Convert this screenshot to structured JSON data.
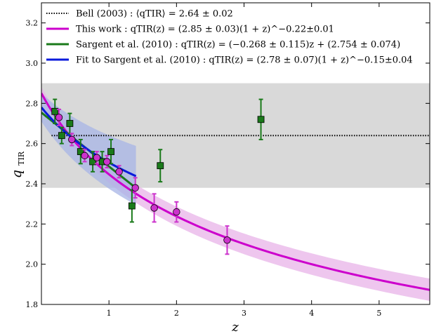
{
  "chart_data": {
    "type": "scatter",
    "title": "",
    "xlabel": "z",
    "ylabel": "q",
    "ylabel_sub": "TIR",
    "xlim": [
      0.0,
      5.75
    ],
    "ylim": [
      1.8,
      3.3
    ],
    "x_ticks": [
      1,
      2,
      3,
      4,
      5
    ],
    "x_tick_labels": [
      "1",
      "2",
      "3",
      "4",
      "5"
    ],
    "y_ticks": [
      1.8,
      2.0,
      2.2,
      2.4,
      2.6,
      2.8,
      3.0,
      3.2
    ],
    "y_tick_labels": [
      "1.8",
      "2.0",
      "2.2",
      "2.4",
      "2.6",
      "2.8",
      "3.0",
      "3.2"
    ],
    "grid": false,
    "legend_position": "top-left",
    "shaded_band": {
      "y_min": 2.38,
      "y_max": 2.9,
      "color": "#d9d9d9"
    },
    "legend": [
      {
        "key": "bell",
        "text": "Bell (2003) : ⟨qTIR⟩ = 2.64 ± 0.02",
        "color": "#000000",
        "style": "dotted"
      },
      {
        "key": "this_work",
        "text": "This work : qTIR(z) = (2.85 ± 0.03)(1 + z)^−0.22±0.01",
        "color": "#cc00cc",
        "style": "solid"
      },
      {
        "key": "sargent",
        "text": "Sargent et al. (2010) : qTIR(z) = (−0.268 ± 0.115)z + (2.754 ± 0.074)",
        "color": "#1a7a1a",
        "style": "solid"
      },
      {
        "key": "fit_sargent",
        "text": "Fit to Sargent et al. (2010) : qTIR(z) = (2.78 ± 0.07)(1 + z)^−0.15±0.04",
        "color": "#0a1adb",
        "style": "solid"
      }
    ],
    "series": [
      {
        "key": "bell",
        "kind": "hline",
        "y": 2.64,
        "x_range": [
          0.15,
          5.75
        ],
        "color": "#000000"
      },
      {
        "key": "this_work",
        "kind": "model",
        "model": "power",
        "a": 2.85,
        "a_err": 0.03,
        "b": -0.22,
        "b_err": 0.01,
        "x_range": [
          0.0,
          5.75
        ],
        "color": "#cc00cc",
        "band_color": "#e8b3e8"
      },
      {
        "key": "sargent",
        "kind": "model",
        "model": "linear",
        "slope": -0.268,
        "intercept": 2.754,
        "x_range": [
          0.0,
          1.4
        ],
        "color": "#1a7a1a"
      },
      {
        "key": "fit_sargent",
        "kind": "model",
        "model": "power",
        "a": 2.78,
        "a_err": 0.07,
        "b": -0.15,
        "b_err": 0.04,
        "x_range": [
          0.0,
          1.4
        ],
        "color": "#0a1adb",
        "band_color": "#a7b4e6"
      },
      {
        "key": "sargent_points",
        "kind": "points",
        "marker": "square",
        "color": "#1a7a1a",
        "edge_color": "#000000",
        "x": [
          0.2,
          0.3,
          0.42,
          0.58,
          0.76,
          0.9,
          1.03,
          1.34,
          1.76,
          3.25
        ],
        "y": [
          2.76,
          2.64,
          2.7,
          2.56,
          2.51,
          2.51,
          2.56,
          2.29,
          2.49,
          2.72
        ],
        "yerr": [
          0.06,
          0.04,
          0.05,
          0.06,
          0.05,
          0.05,
          0.06,
          0.08,
          0.08,
          0.1
        ]
      },
      {
        "key": "this_work_points",
        "kind": "points",
        "marker": "circle",
        "color": "#cc33cc",
        "edge_color": "#000000",
        "x": [
          0.26,
          0.45,
          0.64,
          0.82,
          0.97,
          1.15,
          1.39,
          1.67,
          2.0,
          2.75
        ],
        "y": [
          2.73,
          2.62,
          2.54,
          2.53,
          2.51,
          2.46,
          2.38,
          2.28,
          2.26,
          2.12
        ],
        "yerr": [
          0.04,
          0.03,
          0.03,
          0.03,
          0.03,
          0.03,
          0.05,
          0.07,
          0.05,
          0.07
        ]
      }
    ]
  }
}
